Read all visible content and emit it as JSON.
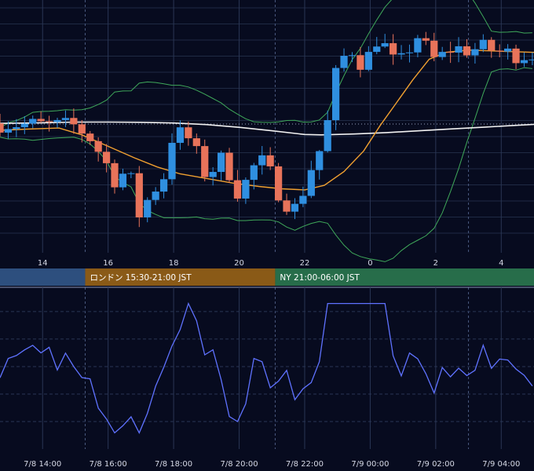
{
  "colors": {
    "background": "#070b1f",
    "grid": "#1f2a44",
    "candle_up": "#2f8fe0",
    "candle_down": "#e8735a",
    "bollinger": "#3fa85a",
    "ma_short": "#f0a030",
    "ma_long": "#f2f2f2",
    "oscillator": "#5f72ff",
    "session_tokyo": "#2d4f7e",
    "session_london": "#8a5a17",
    "session_ny": "#276d4a"
  },
  "chart_data": [
    {
      "type": "line",
      "description_of_overlays": [
        "candlestick",
        "bollinger-bands",
        "moving-average-short",
        "moving-average-long"
      ],
      "x_ticks": [
        "14",
        "16",
        "18",
        "20",
        "22",
        "0",
        "2",
        "4"
      ],
      "x_range_hours": [
        12.7,
        29.0
      ],
      "y_range_index": [
        0,
        100
      ],
      "grid": true,
      "candles": [],
      "ma_short": {
        "x": [
          12.7,
          13.5,
          14.5,
          15.2,
          16.0,
          16.8,
          17.5,
          18.2,
          19.0,
          19.8,
          20.6,
          21.3,
          22.0,
          22.6,
          23.2,
          23.8,
          24.3,
          24.8,
          25.3,
          25.8,
          26.3,
          27.0,
          28.0,
          29.0
        ],
        "y": [
          50,
          50.5,
          51,
          48,
          43,
          38,
          34,
          31,
          29,
          27,
          25.5,
          24.5,
          24,
          26,
          32,
          41,
          52,
          62,
          72,
          81,
          84,
          85,
          84.5,
          84
        ]
      },
      "ma_long": {
        "x": [
          12.7,
          14.0,
          15.0,
          16.0,
          17.0,
          18.0,
          19.0,
          20.0,
          21.0,
          22.0,
          22.5,
          23.5,
          24.5,
          25.5,
          26.5,
          27.5,
          28.5,
          29.0
        ],
        "y": [
          53,
          53.3,
          53.6,
          53.6,
          53.5,
          53.2,
          52.5,
          51.3,
          49.8,
          48.2,
          48.0,
          48.4,
          49,
          49.8,
          50.6,
          51.4,
          52.2,
          52.6
        ]
      }
    },
    {
      "type": "line",
      "x_ticks": [
        "7/8 14:00",
        "7/8 16:00",
        "7/8 18:00",
        "7/8 20:00",
        "7/8 22:00",
        "7/9 00:00",
        "7/9 02:00",
        "7/9 04:00"
      ],
      "x_range_hours": [
        12.7,
        29.0
      ],
      "grid": true,
      "series": [
        {
          "values": []
        }
      ]
    }
  ],
  "sessions": [
    {
      "label": "",
      "start": 12.7,
      "end": 15.3,
      "color_key": "session_tokyo"
    },
    {
      "label": "ロンドン 15:30-21:00 JST",
      "start": 15.3,
      "end": 21.1,
      "color_key": "session_london"
    },
    {
      "label": "NY 21:00-06:00 JST",
      "start": 21.1,
      "end": 29.0,
      "color_key": "session_ny"
    }
  ]
}
